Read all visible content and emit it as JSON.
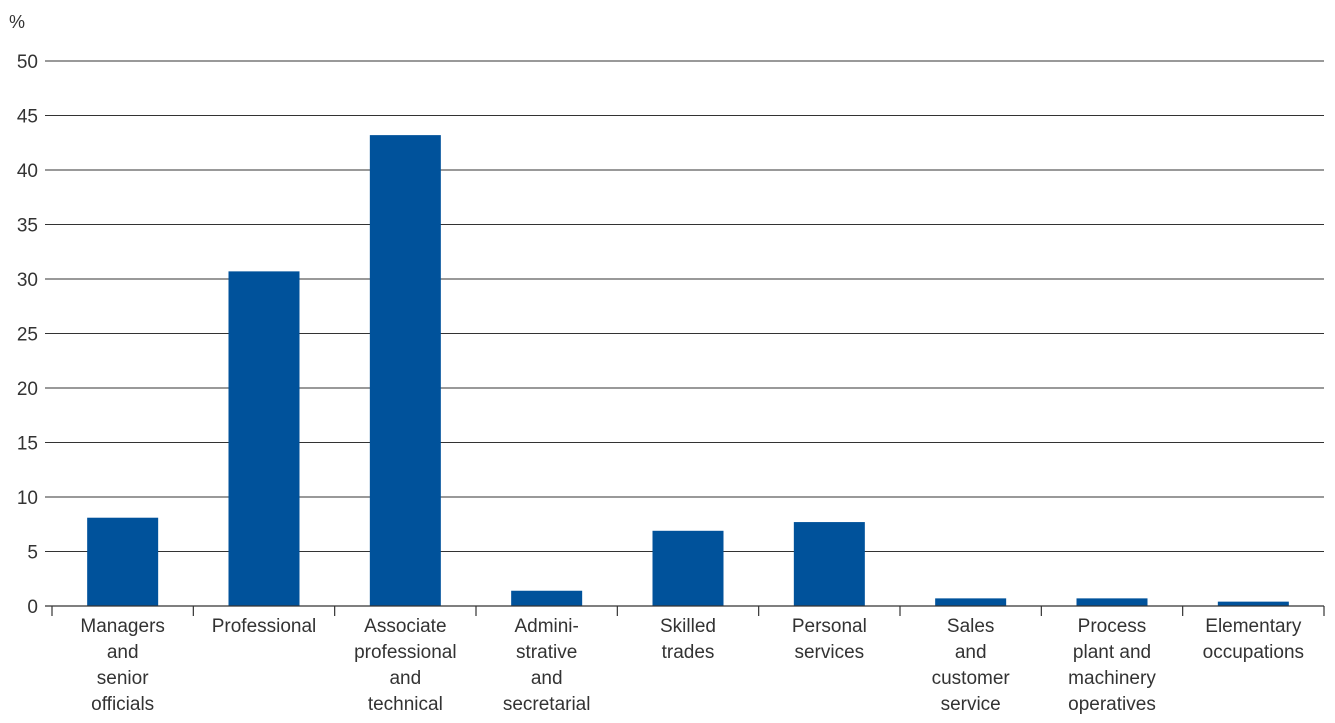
{
  "chart_data": {
    "type": "bar",
    "ylabel": "%",
    "ylim": [
      0,
      50
    ],
    "yticks": [
      0,
      5,
      10,
      15,
      20,
      25,
      30,
      35,
      40,
      45,
      50
    ],
    "grid": true,
    "colors": {
      "bar": "#00529b",
      "grid": "#333333"
    },
    "categories": [
      {
        "lines": [
          "Managers",
          "and",
          "senior",
          "officials"
        ]
      },
      {
        "lines": [
          "Professional"
        ]
      },
      {
        "lines": [
          "Associate",
          "professional",
          "and",
          "technical"
        ]
      },
      {
        "lines": [
          "Admini-",
          "strative",
          "and",
          "secretarial"
        ]
      },
      {
        "lines": [
          "Skilled",
          "trades"
        ]
      },
      {
        "lines": [
          "Personal",
          "services"
        ]
      },
      {
        "lines": [
          "Sales",
          "and",
          "customer",
          "service"
        ]
      },
      {
        "lines": [
          "Process",
          "plant and",
          "machinery",
          "operatives"
        ]
      },
      {
        "lines": [
          "Elementary",
          "occupations"
        ]
      }
    ],
    "values": [
      8.1,
      30.7,
      43.2,
      1.4,
      6.9,
      7.7,
      0.7,
      0.7,
      0.4
    ]
  }
}
